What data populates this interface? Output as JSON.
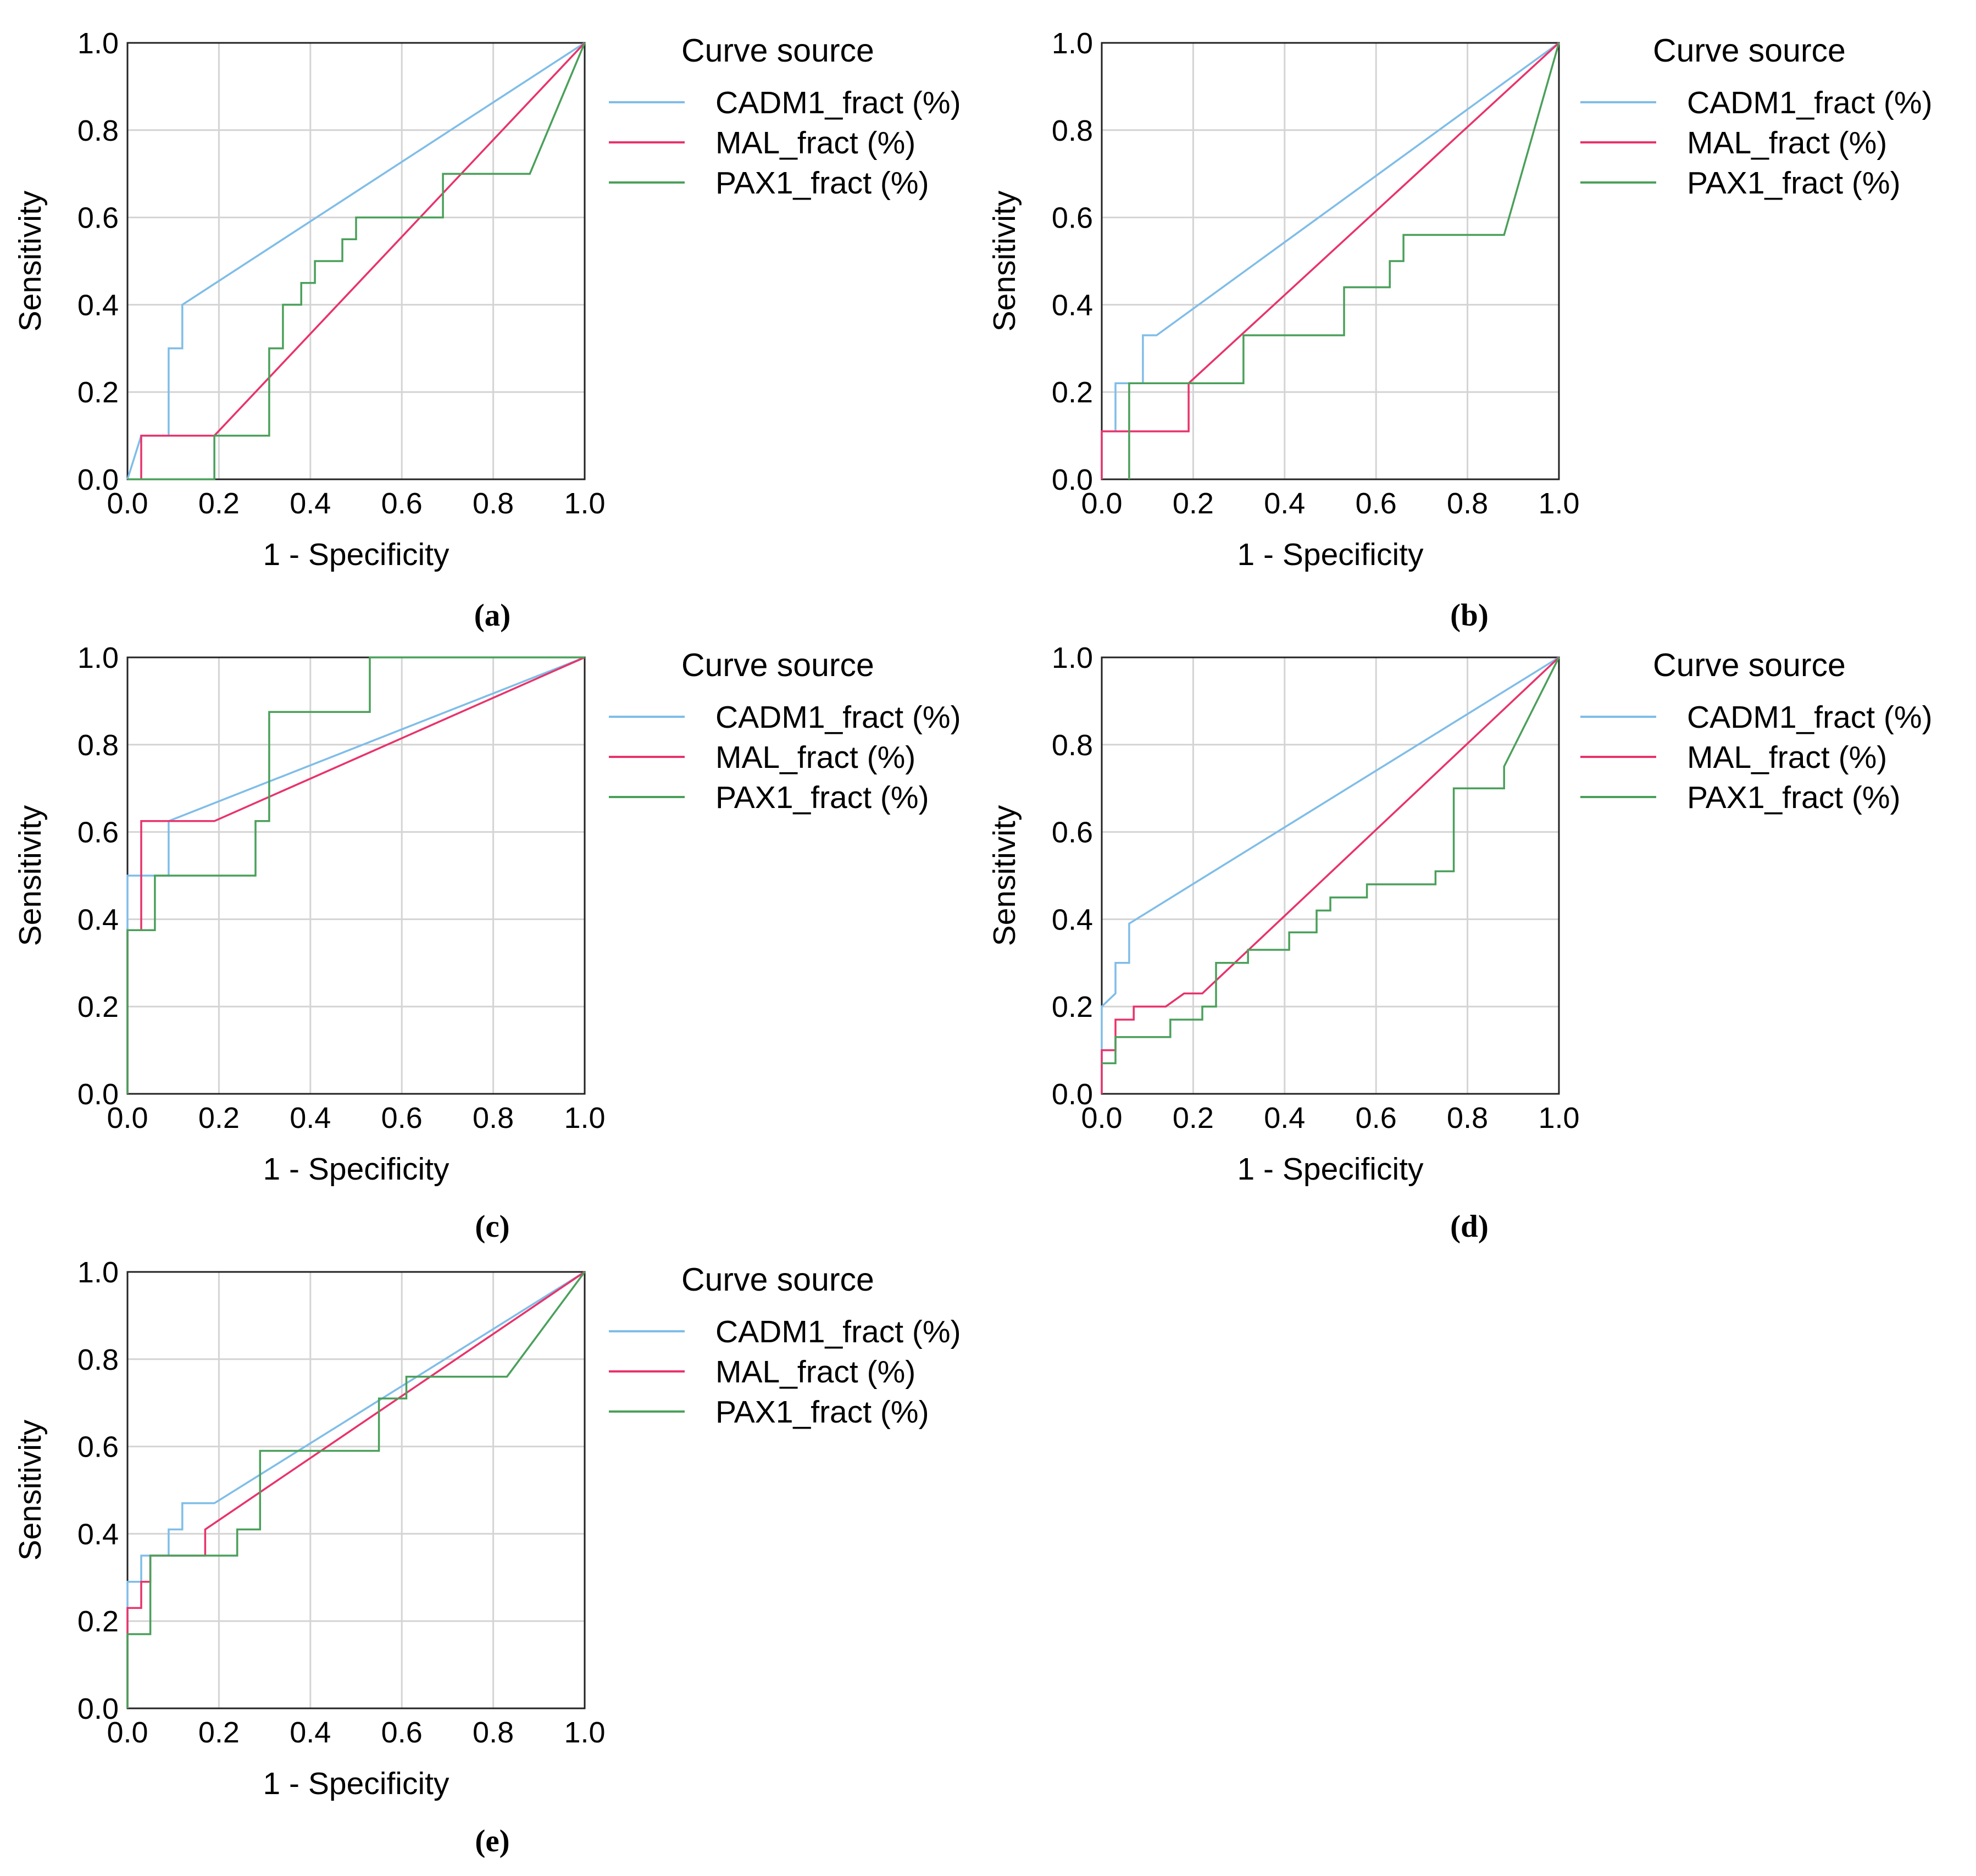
{
  "figure": {
    "xlabel": "1 - Specificity",
    "ylabel": "Sensitivity",
    "legend_title": "Curve source",
    "xticks": [
      "0.0",
      "0.2",
      "0.4",
      "0.6",
      "0.8",
      "1.0"
    ],
    "yticks": [
      "0.0",
      "0.2",
      "0.4",
      "0.6",
      "0.8",
      "1.0"
    ],
    "colors": {
      "CADM1_fract (%)": "#7fbde8",
      "MAL_fract (%)": "#e8336b",
      "PAX1_fract (%)": "#4aa05a",
      "grid": "#d4d4d4",
      "axis": "#222222"
    }
  },
  "chart_data": [
    {
      "type": "line",
      "caption": "(a)",
      "title": "",
      "xlabel": "1 - Specificity",
      "ylabel": "Sensitivity",
      "xlim": [
        0,
        1
      ],
      "ylim": [
        0,
        1
      ],
      "grid": true,
      "legend": "right",
      "series": [
        {
          "name": "CADM1_fract (%)",
          "x": [
            0,
            0.03,
            0.09,
            0.09,
            0.12,
            0.12,
            1.0
          ],
          "y": [
            0,
            0.1,
            0.1,
            0.3,
            0.3,
            0.4,
            1.0
          ]
        },
        {
          "name": "MAL_fract (%)",
          "x": [
            0.03,
            0.03,
            0.19,
            1.0
          ],
          "y": [
            0,
            0.1,
            0.1,
            1.0
          ]
        },
        {
          "name": "PAX1_fract (%)",
          "x": [
            0,
            0.19,
            0.19,
            0.31,
            0.31,
            0.34,
            0.34,
            0.38,
            0.38,
            0.41,
            0.41,
            0.47,
            0.47,
            0.5,
            0.5,
            0.69,
            0.69,
            0.88,
            0.88,
            1.0
          ],
          "y": [
            0,
            0,
            0.1,
            0.1,
            0.3,
            0.3,
            0.4,
            0.4,
            0.45,
            0.45,
            0.5,
            0.5,
            0.55,
            0.55,
            0.6,
            0.6,
            0.7,
            0.7,
            0.7,
            1.0
          ]
        }
      ]
    },
    {
      "type": "line",
      "caption": "(b)",
      "title": "",
      "xlabel": "1 - Specificity",
      "ylabel": "Sensitivity",
      "xlim": [
        0,
        1
      ],
      "ylim": [
        0,
        1
      ],
      "grid": true,
      "legend": "right",
      "series": [
        {
          "name": "CADM1_fract (%)",
          "x": [
            0,
            0,
            0.03,
            0.03,
            0.09,
            0.09,
            0.12,
            1.0
          ],
          "y": [
            0,
            0.11,
            0.11,
            0.22,
            0.22,
            0.33,
            0.33,
            1.0
          ]
        },
        {
          "name": "MAL_fract (%)",
          "x": [
            0,
            0,
            0.19,
            0.19,
            1.0
          ],
          "y": [
            0,
            0.11,
            0.11,
            0.22,
            1.0
          ]
        },
        {
          "name": "PAX1_fract (%)",
          "x": [
            0.06,
            0.06,
            0.31,
            0.31,
            0.53,
            0.53,
            0.63,
            0.63,
            0.66,
            0.66,
            0.88,
            1.0
          ],
          "y": [
            0,
            0.22,
            0.22,
            0.33,
            0.33,
            0.44,
            0.44,
            0.5,
            0.5,
            0.56,
            0.56,
            1.0
          ]
        }
      ]
    },
    {
      "type": "line",
      "caption": "(c)",
      "title": "",
      "xlabel": "1 - Specificity",
      "ylabel": "Sensitivity",
      "xlim": [
        0,
        1
      ],
      "ylim": [
        0,
        1
      ],
      "grid": true,
      "legend": "right",
      "series": [
        {
          "name": "CADM1_fract (%)",
          "x": [
            0,
            0,
            0.09,
            0.09,
            1.0
          ],
          "y": [
            0,
            0.5,
            0.5,
            0.625,
            1.0
          ]
        },
        {
          "name": "MAL_fract (%)",
          "x": [
            0,
            0,
            0.03,
            0.03,
            0.19,
            1.0
          ],
          "y": [
            0,
            0.375,
            0.375,
            0.625,
            0.625,
            1.0
          ]
        },
        {
          "name": "PAX1_fract (%)",
          "x": [
            0,
            0,
            0.06,
            0.06,
            0.28,
            0.28,
            0.31,
            0.31,
            0.53,
            0.53,
            1.0
          ],
          "y": [
            0,
            0.375,
            0.375,
            0.5,
            0.5,
            0.625,
            0.625,
            0.875,
            0.875,
            1.0,
            1.0
          ]
        }
      ]
    },
    {
      "type": "line",
      "caption": "(d)",
      "title": "",
      "xlabel": "1 - Specificity",
      "ylabel": "Sensitivity",
      "xlim": [
        0,
        1
      ],
      "ylim": [
        0,
        1
      ],
      "grid": true,
      "legend": "right",
      "series": [
        {
          "name": "CADM1_fract (%)",
          "x": [
            0,
            0,
            0.03,
            0.03,
            0.06,
            0.06,
            1.0
          ],
          "y": [
            0,
            0.2,
            0.23,
            0.3,
            0.3,
            0.39,
            1.0
          ]
        },
        {
          "name": "MAL_fract (%)",
          "x": [
            0,
            0,
            0.03,
            0.03,
            0.07,
            0.07,
            0.14,
            0.18,
            0.18,
            0.22,
            0.22,
            1.0
          ],
          "y": [
            0,
            0.1,
            0.1,
            0.17,
            0.17,
            0.2,
            0.2,
            0.23,
            0.23,
            0.23,
            0.23,
            1.0
          ]
        },
        {
          "name": "PAX1_fract (%)",
          "x": [
            0,
            0.03,
            0.03,
            0.15,
            0.15,
            0.22,
            0.22,
            0.25,
            0.25,
            0.32,
            0.32,
            0.41,
            0.41,
            0.47,
            0.47,
            0.5,
            0.5,
            0.58,
            0.58,
            0.73,
            0.73,
            0.77,
            0.77,
            0.88,
            0.88,
            1.0
          ],
          "y": [
            0.07,
            0.07,
            0.13,
            0.13,
            0.17,
            0.17,
            0.2,
            0.2,
            0.3,
            0.3,
            0.33,
            0.33,
            0.37,
            0.37,
            0.42,
            0.42,
            0.45,
            0.45,
            0.48,
            0.48,
            0.51,
            0.51,
            0.7,
            0.7,
            0.75,
            1.0
          ]
        }
      ]
    },
    {
      "type": "line",
      "caption": "(e)",
      "title": "",
      "xlabel": "1 - Specificity",
      "ylabel": "Sensitivity",
      "xlim": [
        0,
        1
      ],
      "ylim": [
        0,
        1
      ],
      "grid": true,
      "legend": "right",
      "series": [
        {
          "name": "CADM1_fract (%)",
          "x": [
            0,
            0,
            0.03,
            0.03,
            0.09,
            0.09,
            0.12,
            0.12,
            0.19,
            1.0
          ],
          "y": [
            0,
            0.29,
            0.29,
            0.35,
            0.35,
            0.41,
            0.41,
            0.47,
            0.47,
            1.0
          ]
        },
        {
          "name": "MAL_fract (%)",
          "x": [
            0,
            0,
            0.03,
            0.03,
            0.05,
            0.05,
            0.17,
            0.17,
            1.0
          ],
          "y": [
            0,
            0.23,
            0.23,
            0.29,
            0.29,
            0.35,
            0.35,
            0.41,
            1.0
          ]
        },
        {
          "name": "PAX1_fract (%)",
          "x": [
            0,
            0,
            0.05,
            0.05,
            0.24,
            0.24,
            0.29,
            0.29,
            0.55,
            0.55,
            0.61,
            0.61,
            0.65,
            0.65,
            0.83,
            1.0
          ],
          "y": [
            0,
            0.17,
            0.17,
            0.35,
            0.35,
            0.41,
            0.41,
            0.59,
            0.59,
            0.71,
            0.71,
            0.76,
            0.76,
            0.76,
            0.76,
            1.0
          ]
        }
      ]
    }
  ]
}
